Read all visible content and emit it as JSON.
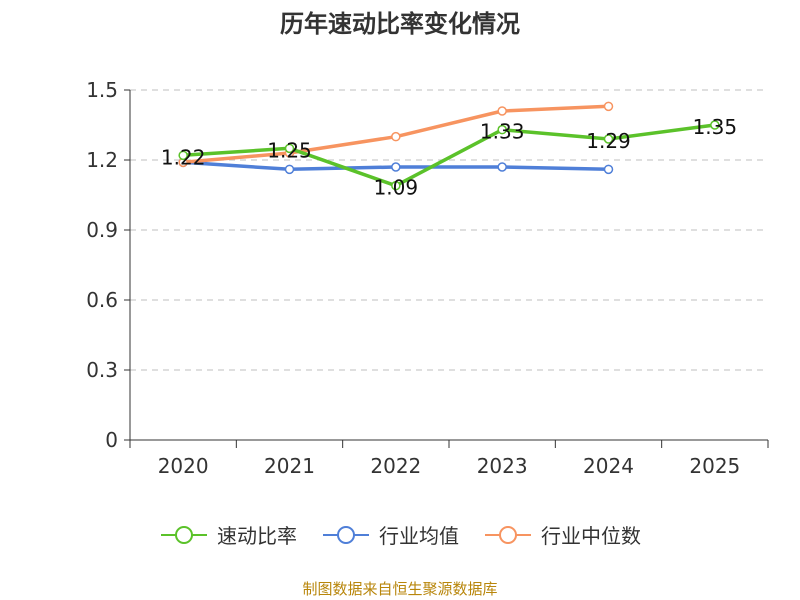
{
  "title": "历年速动比率变化情况",
  "source": "制图数据来自恒生聚源数据库",
  "chart_data": {
    "type": "line",
    "title": "历年速动比率变化情况",
    "categories": [
      "2020",
      "2021",
      "2022",
      "2023",
      "2024",
      "2025"
    ],
    "ylim": [
      0,
      1.5
    ],
    "yticks": [
      "0",
      "0.3",
      "0.6",
      "0.9",
      "1.2",
      "1.5"
    ],
    "grid": true,
    "legend_position": "bottom",
    "series": [
      {
        "name": "速动比率",
        "color": "#5bc22a",
        "values": [
          1.22,
          1.25,
          1.09,
          1.33,
          1.29,
          1.35
        ],
        "labels": [
          "1.22",
          "1.25",
          "1.09",
          "1.33",
          "1.29",
          "1.35"
        ]
      },
      {
        "name": "行业均值",
        "color": "#4f7fd8",
        "values": [
          1.19,
          1.16,
          1.17,
          1.17,
          1.16,
          null
        ]
      },
      {
        "name": "行业中位数",
        "color": "#f79460",
        "values": [
          1.19,
          1.23,
          1.3,
          1.41,
          1.43,
          null
        ]
      }
    ]
  }
}
